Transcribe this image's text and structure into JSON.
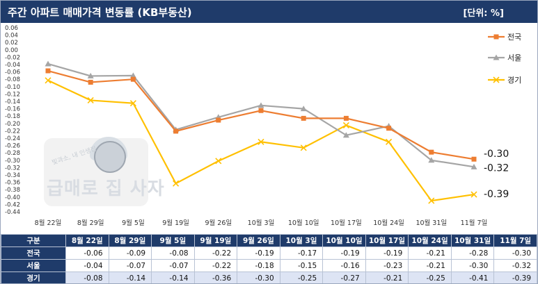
{
  "header": {
    "title": "주간 아파트 매매가격 변동률 (KB부동산)",
    "unit": "[단위: %]"
  },
  "watermark": {
    "text": "급매로 집 사자",
    "small": "빛과소, 내 인생집"
  },
  "colors": {
    "header_bg": "#1f3b6a",
    "national": "#ed7d31",
    "seoul": "#a5a5a5",
    "gyeonggi": "#ffc000"
  },
  "table": {
    "corner": "구분",
    "columns": [
      "8월 22일",
      "8월 29일",
      "9월 5일",
      "9월 19일",
      "9월 26일",
      "10월 3일",
      "10월 10일",
      "10월 17일",
      "10월 24일",
      "10월 31일",
      "11월 7일"
    ],
    "rows": [
      {
        "label": "전국",
        "values": [
          "-0.06",
          "-0.09",
          "-0.08",
          "-0.22",
          "-0.19",
          "-0.17",
          "-0.19",
          "-0.19",
          "-0.21",
          "-0.28",
          "-0.30"
        ]
      },
      {
        "label": "서울",
        "values": [
          "-0.04",
          "-0.07",
          "-0.07",
          "-0.22",
          "-0.18",
          "-0.15",
          "-0.16",
          "-0.23",
          "-0.21",
          "-0.30",
          "-0.32"
        ]
      },
      {
        "label": "경기",
        "values": [
          "-0.08",
          "-0.14",
          "-0.14",
          "-0.36",
          "-0.30",
          "-0.25",
          "-0.27",
          "-0.21",
          "-0.25",
          "-0.41",
          "-0.39"
        ]
      }
    ]
  },
  "chart_data": {
    "type": "line",
    "title": "주간 아파트 매매가격 변동률 (KB부동산)",
    "xlabel": "",
    "ylabel": "",
    "categories": [
      "8월 22일",
      "8월 29일",
      "9월 5일",
      "9월 19일",
      "9월 26일",
      "10월 3일",
      "10월 10일",
      "10월 17일",
      "10월 24일",
      "10월 31일",
      "11월 7일"
    ],
    "ylim": [
      -0.44,
      0.06
    ],
    "ytick_step": 0.02,
    "yticks": [
      "0.06",
      "0.04",
      "0.02",
      "0.00",
      "-0.02",
      "-0.04",
      "-0.06",
      "-0.08",
      "-0.10",
      "-0.12",
      "-0.14",
      "-0.16",
      "-0.18",
      "-0.20",
      "-0.22",
      "-0.24",
      "-0.26",
      "-0.28",
      "-0.30",
      "-0.32",
      "-0.34",
      "-0.36",
      "-0.38",
      "-0.40",
      "-0.42",
      "-0.44"
    ],
    "grid": false,
    "legend": "right",
    "series": [
      {
        "name": "전국",
        "values": [
          -0.057,
          -0.088,
          -0.08,
          -0.221,
          -0.191,
          -0.165,
          -0.186,
          -0.186,
          -0.213,
          -0.278,
          -0.297
        ],
        "end_label": "-0.30"
      },
      {
        "name": "서울",
        "values": [
          -0.038,
          -0.071,
          -0.07,
          -0.217,
          -0.183,
          -0.151,
          -0.16,
          -0.232,
          -0.207,
          -0.3,
          -0.318
        ],
        "end_label": "-0.32"
      },
      {
        "name": "경기",
        "values": [
          -0.083,
          -0.137,
          -0.145,
          -0.363,
          -0.302,
          -0.25,
          -0.266,
          -0.205,
          -0.25,
          -0.41,
          -0.393
        ],
        "end_label": "-0.39"
      }
    ]
  }
}
